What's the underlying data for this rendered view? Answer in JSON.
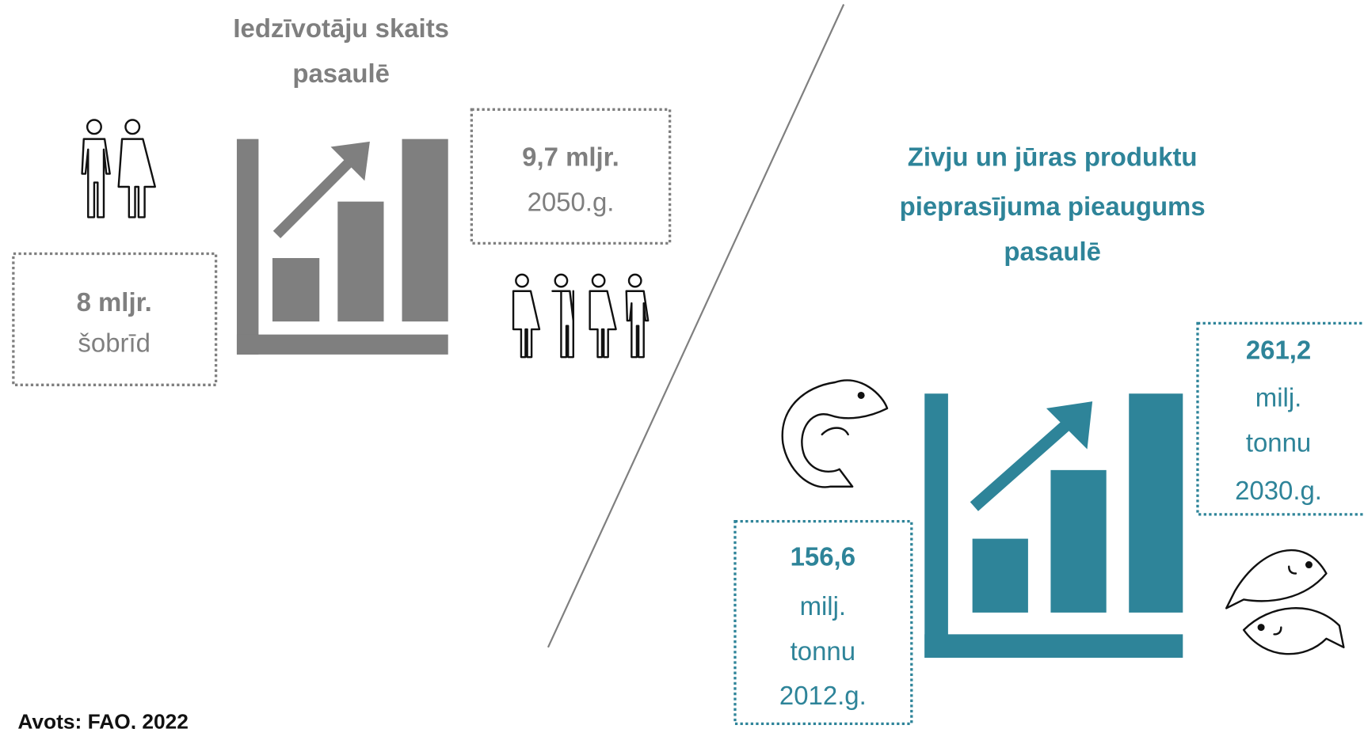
{
  "population": {
    "title": [
      "Iedzīvotāju skaits",
      "pasaulē"
    ],
    "current": {
      "value": "8 mljr.",
      "label": "šobrīd"
    },
    "future": {
      "value": "9,7 mljr.",
      "label": "2050.g."
    }
  },
  "seafood": {
    "title": [
      "Zivju un jūras produktu",
      "pieprasījuma pieaugums",
      "pasaulē"
    ],
    "start": [
      "156,6",
      "milj.",
      "tonnu",
      "2012.g."
    ],
    "end": [
      "261,2",
      "milj.",
      "tonnu",
      "2030.g."
    ]
  },
  "source": "Avots: FAO, 2022"
}
